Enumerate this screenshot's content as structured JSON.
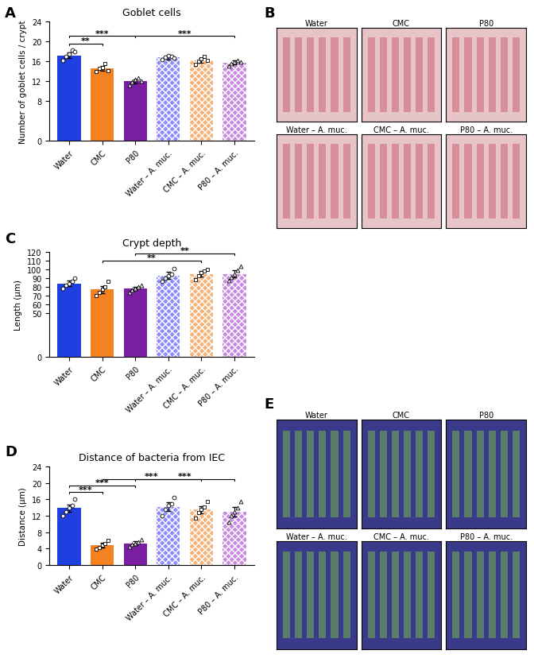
{
  "chart_data": [
    {
      "type": "bar",
      "panel_label": "A",
      "title": "Goblet cells",
      "y_label": "Number of goblet cells / crypt",
      "categories": [
        "Water",
        "CMC",
        "P80",
        "Water – A. muc.",
        "CMC – A. muc.",
        "P80 – A. muc."
      ],
      "values": [
        17.2,
        14.6,
        12.0,
        16.8,
        16.2,
        15.7
      ],
      "error": [
        0.6,
        0.5,
        0.4,
        0.4,
        0.5,
        0.4
      ],
      "points": [
        [
          16.2,
          17.0,
          17.5,
          18.3,
          18.0
        ],
        [
          14.0,
          14.5,
          14.8,
          15.5,
          14.1
        ],
        [
          11.2,
          11.8,
          12.3,
          12.6,
          12.0
        ],
        [
          16.3,
          16.8,
          17.2,
          17.0,
          16.6
        ],
        [
          15.4,
          16.0,
          16.5,
          17.0,
          16.1
        ],
        [
          15.0,
          15.5,
          15.9,
          16.2,
          15.8
        ]
      ],
      "colors": [
        "#1f3fe0",
        "#f58220",
        "#7a1fa2",
        "#8c8cff",
        "#f7b27a",
        "#c98ae0"
      ],
      "ylim": [
        0,
        24
      ],
      "yticks": [
        0,
        8,
        12,
        16,
        20,
        24
      ],
      "significance": [
        {
          "from": "Water",
          "to": "CMC",
          "text": "**"
        },
        {
          "from": "Water",
          "to": "P80",
          "text": "***"
        },
        {
          "from": "P80",
          "to": "P80 – A. muc.",
          "text": "***"
        }
      ]
    },
    {
      "type": "bar",
      "panel_label": "C",
      "title": "Crypt depth",
      "y_label": "Length (µm)",
      "categories": [
        "Water",
        "CMC",
        "P80",
        "Water – A. muc.",
        "CMC – A. muc.",
        "P80 – A. muc."
      ],
      "values": [
        84,
        77,
        78,
        93,
        95,
        95
      ],
      "error": [
        3,
        4,
        2,
        4,
        3,
        4
      ],
      "points": [
        [
          78,
          82,
          84,
          86,
          90
        ],
        [
          70,
          74,
          77,
          80,
          86
        ],
        [
          74,
          76,
          78,
          80,
          82
        ],
        [
          86,
          90,
          93,
          95,
          101
        ],
        [
          88,
          93,
          96,
          98,
          100
        ],
        [
          87,
          91,
          95,
          99,
          104
        ]
      ],
      "colors": [
        "#1f3fe0",
        "#f58220",
        "#7a1fa2",
        "#8c8cff",
        "#f7b27a",
        "#c98ae0"
      ],
      "ylim": [
        0,
        120
      ],
      "yticks": [
        0,
        50,
        60,
        70,
        80,
        90,
        100,
        110,
        120
      ],
      "significance": [
        {
          "from": "CMC",
          "to": "CMC – A. muc.",
          "text": "**"
        },
        {
          "from": "P80",
          "to": "P80 – A. muc.",
          "text": "**"
        }
      ]
    },
    {
      "type": "bar",
      "panel_label": "D",
      "title": "Distance of bacteria from IEC",
      "y_label": "Distance (µm)",
      "categories": [
        "Water",
        "CMC",
        "P80",
        "Water – A. muc.",
        "CMC – A. muc.",
        "P80 – A. muc."
      ],
      "values": [
        13.9,
        4.8,
        5.3,
        14.2,
        13.5,
        13.0
      ],
      "error": [
        0.9,
        0.6,
        0.5,
        1.0,
        0.9,
        1.2
      ],
      "points": [
        [
          12.0,
          13.0,
          14.0,
          14.5,
          16.0
        ],
        [
          3.8,
          4.2,
          4.8,
          5.2,
          6.0
        ],
        [
          4.5,
          5.0,
          5.3,
          5.6,
          6.2
        ],
        [
          12.0,
          13.5,
          14.5,
          15.0,
          16.5
        ],
        [
          11.5,
          12.8,
          13.5,
          14.2,
          15.5
        ],
        [
          10.5,
          12.0,
          13.0,
          14.0,
          15.5
        ]
      ],
      "colors": [
        "#1f3fe0",
        "#f58220",
        "#7a1fa2",
        "#8c8cff",
        "#f7b27a",
        "#c98ae0"
      ],
      "ylim": [
        0,
        24
      ],
      "yticks": [
        0,
        4,
        8,
        12,
        16,
        20,
        24
      ],
      "significance": [
        {
          "from": "Water",
          "to": "CMC",
          "text": "***"
        },
        {
          "from": "Water",
          "to": "P80",
          "text": "***"
        },
        {
          "from": "CMC",
          "to": "CMC – A. muc.",
          "text": "***"
        },
        {
          "from": "P80",
          "to": "P80 – A. muc.",
          "text": "***"
        }
      ]
    }
  ],
  "image_panels": [
    {
      "panel_label": "B",
      "titles": [
        "Water",
        "CMC",
        "P80",
        "Water – A. muc.",
        "CMC – A. muc.",
        "P80 – A. muc."
      ]
    },
    {
      "panel_label": "E",
      "titles": [
        "Water",
        "CMC",
        "P80",
        "Water – A. muc.",
        "CMC – A. muc.",
        "P80 – A. muc."
      ]
    }
  ]
}
